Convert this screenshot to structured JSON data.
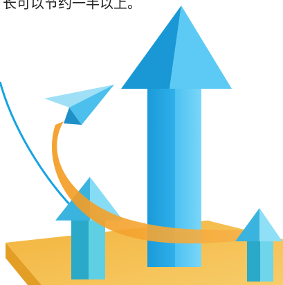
{
  "caption": "长可以节约一半以上。"
}
